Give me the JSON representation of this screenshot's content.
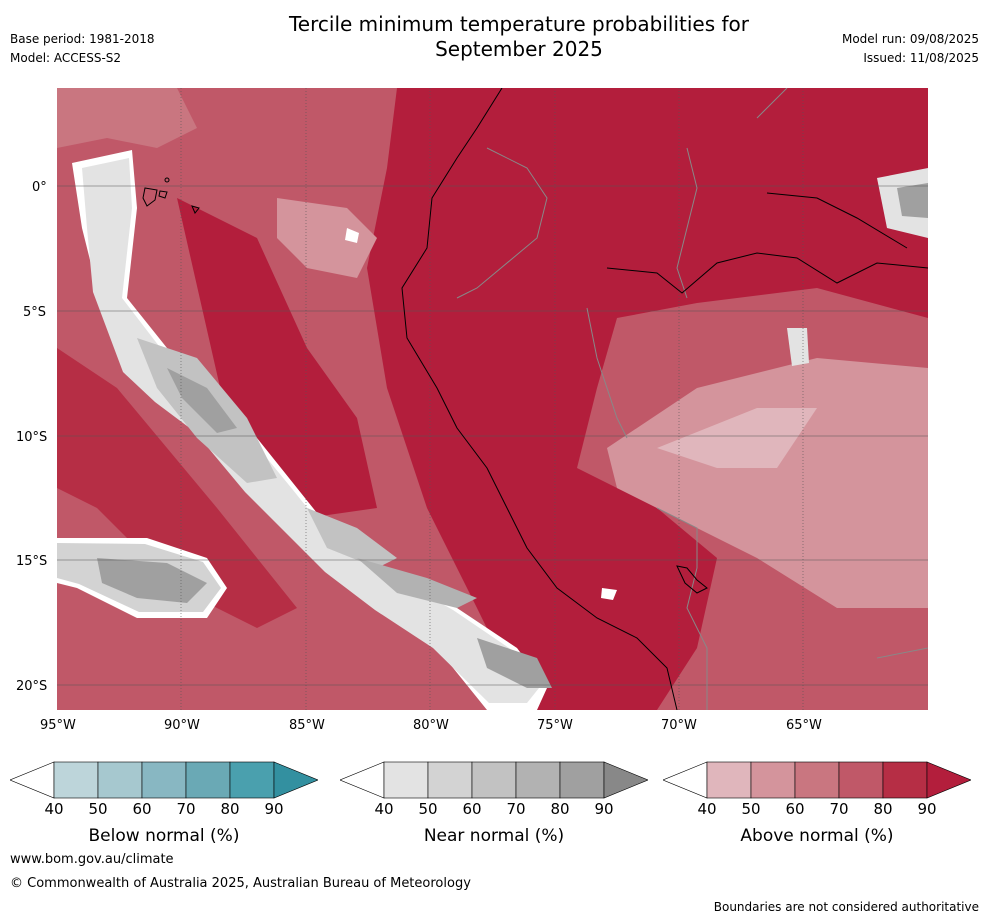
{
  "header": {
    "title_line1": "Tercile minimum temperature probabilities for",
    "title_line2": "September 2025",
    "base_period": "Base period: 1981-2018",
    "model": "Model: ACCESS-S2",
    "model_run": "Model run: 09/08/2025",
    "issued": "Issued: 11/08/2025"
  },
  "map": {
    "lat_ticks": [
      "0°",
      "5°S",
      "10°S",
      "15°S",
      "20°S"
    ],
    "lon_ticks": [
      "95°W",
      "90°W",
      "85°W",
      "80°W",
      "75°W",
      "70°W",
      "65°W"
    ]
  },
  "colorbars": [
    {
      "label": "Below normal (%)",
      "ticks": [
        "40",
        "50",
        "60",
        "70",
        "80",
        "90"
      ],
      "colors": [
        "#ffffff",
        "#bdd5da",
        "#a6c8cf",
        "#88b7c2",
        "#6aa9b5",
        "#4aa0ae",
        "#3390a0"
      ]
    },
    {
      "label": "Near normal (%)",
      "ticks": [
        "40",
        "50",
        "60",
        "70",
        "80",
        "90"
      ],
      "colors": [
        "#ffffff",
        "#e3e3e3",
        "#d3d3d3",
        "#c2c2c2",
        "#b2b2b2",
        "#a0a0a0",
        "#888888"
      ]
    },
    {
      "label": "Above normal (%)",
      "ticks": [
        "40",
        "50",
        "60",
        "70",
        "80",
        "90"
      ],
      "colors": [
        "#ffffff",
        "#e0b6bc",
        "#d4949c",
        "#c97680",
        "#c05868",
        "#b62e45",
        "#b31e3c"
      ]
    }
  ],
  "footer": {
    "website": "www.bom.gov.au/climate",
    "copyright": "© Commonwealth of Australia 2025, Australian Bureau of Meteorology",
    "disclaimer": "Boundaries are not considered authoritative"
  }
}
